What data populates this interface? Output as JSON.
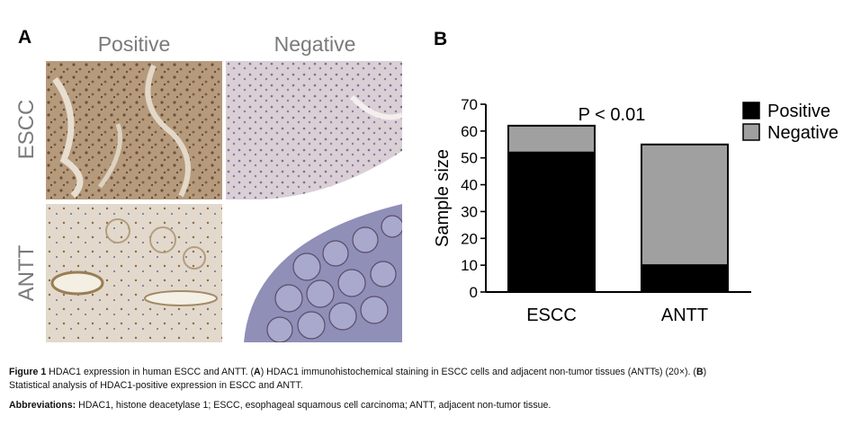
{
  "panel_a": {
    "letter": "A",
    "columns": [
      "Positive",
      "Negative"
    ],
    "rows": [
      "ESCC",
      "ANTT"
    ]
  },
  "panel_b": {
    "letter": "B",
    "annotation": "P < 0.01"
  },
  "chart_data": {
    "type": "bar",
    "stacked": true,
    "categories": [
      "ESCC",
      "ANTT"
    ],
    "series": [
      {
        "name": "Positive",
        "values": [
          52,
          10
        ],
        "color": "#000000"
      },
      {
        "name": "Negative",
        "values": [
          10,
          45
        ],
        "color": "#a0a0a0"
      }
    ],
    "ylabel": "Sample size",
    "xlabel": "",
    "ylim": [
      0,
      70
    ],
    "yticks": [
      0,
      10,
      20,
      30,
      40,
      50,
      60,
      70
    ],
    "legend": "top-right",
    "grid": false,
    "annotation": "P < 0.01"
  },
  "caption": {
    "figure_label": "Figure 1",
    "line1_text": " HDAC1 expression in human ESCC and ANTT. (",
    "a": "A",
    "line1_text2": ") HDAC1 immunohistochemical staining in ESCC cells and adjacent non-tumor tissues (ANTTs) (20×). (",
    "b": "B",
    "line1_text3": ")",
    "line2": "Statistical analysis of HDAC1-positive expression in ESCC and ANTT.",
    "abbr_label": "Abbreviations:",
    "abbr_text": " HDAC1, histone deacetylase 1; ESCC, esophageal squamous cell carcinoma; ANTT, adjacent non-tumor tissue."
  }
}
